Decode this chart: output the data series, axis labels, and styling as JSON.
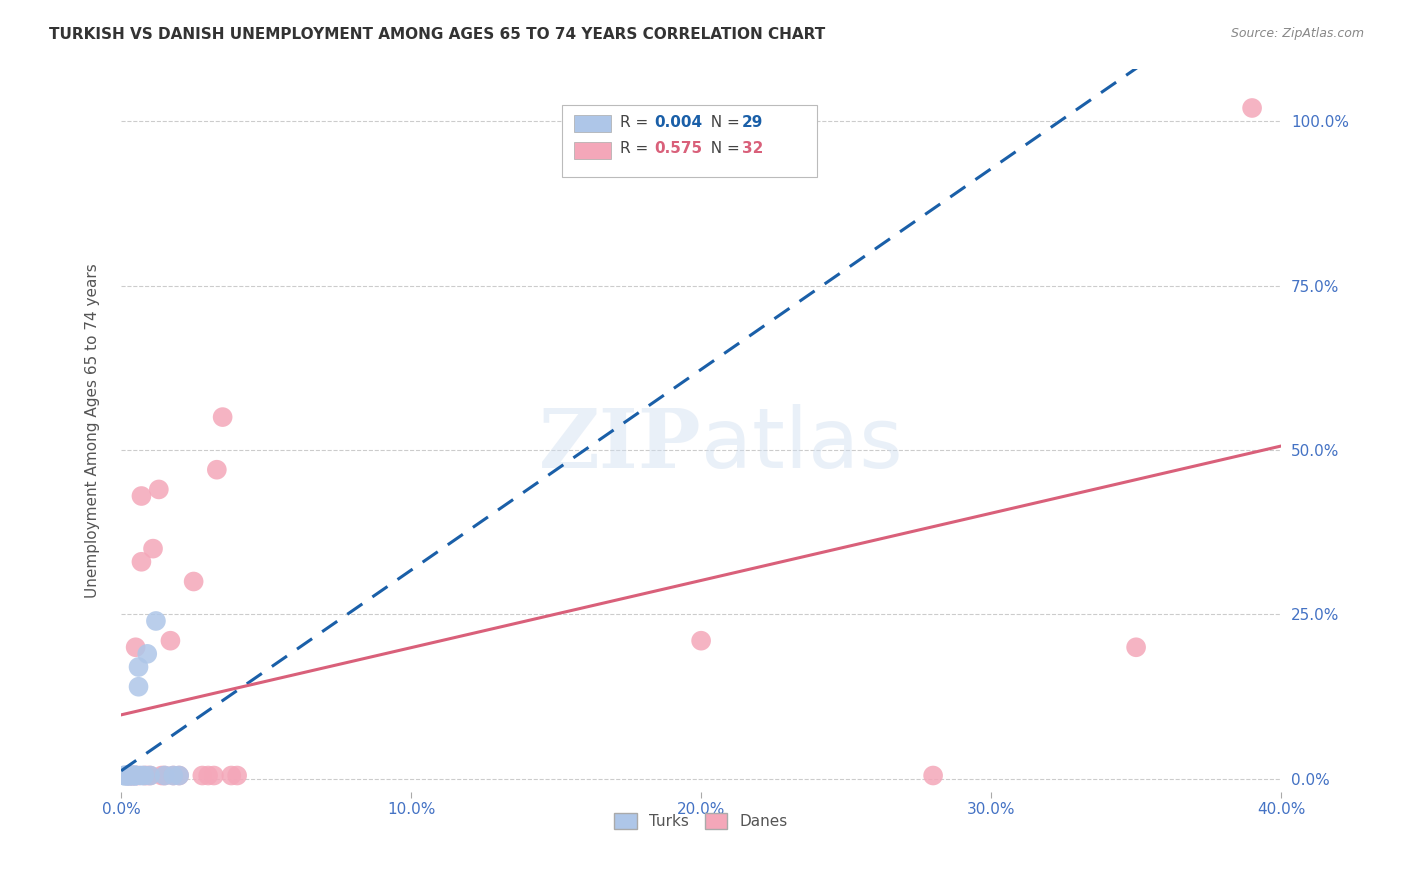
{
  "title": "TURKISH VS DANISH UNEMPLOYMENT AMONG AGES 65 TO 74 YEARS CORRELATION CHART",
  "source": "Source: ZipAtlas.com",
  "ylabel": "Unemployment Among Ages 65 to 74 years",
  "xlim": [
    0.0,
    0.4
  ],
  "ylim": [
    -0.02,
    1.08
  ],
  "x_ticks": [
    0.0,
    0.1,
    0.2,
    0.3,
    0.4
  ],
  "x_tick_labels": [
    "0.0%",
    "10.0%",
    "20.0%",
    "30.0%",
    "40.0%"
  ],
  "y_ticks": [
    0.0,
    0.25,
    0.5,
    0.75,
    1.0
  ],
  "y_tick_labels_right": [
    "0.0%",
    "25.0%",
    "50.0%",
    "75.0%",
    "100.0%"
  ],
  "turks_x": [
    0.001,
    0.001,
    0.001,
    0.002,
    0.002,
    0.002,
    0.002,
    0.002,
    0.003,
    0.003,
    0.003,
    0.003,
    0.004,
    0.004,
    0.004,
    0.005,
    0.005,
    0.005,
    0.005,
    0.006,
    0.006,
    0.007,
    0.008,
    0.009,
    0.01,
    0.012,
    0.015,
    0.018,
    0.02
  ],
  "turks_y": [
    0.005,
    0.005,
    0.005,
    0.005,
    0.005,
    0.005,
    0.005,
    0.005,
    0.005,
    0.005,
    0.005,
    0.005,
    0.005,
    0.005,
    0.005,
    0.005,
    0.005,
    0.005,
    0.005,
    0.14,
    0.17,
    0.005,
    0.005,
    0.19,
    0.005,
    0.24,
    0.005,
    0.005,
    0.005
  ],
  "danes_x": [
    0.002,
    0.003,
    0.003,
    0.004,
    0.004,
    0.005,
    0.005,
    0.006,
    0.007,
    0.007,
    0.008,
    0.009,
    0.01,
    0.011,
    0.013,
    0.014,
    0.015,
    0.017,
    0.018,
    0.02,
    0.025,
    0.028,
    0.03,
    0.032,
    0.033,
    0.035,
    0.038,
    0.04,
    0.2,
    0.28,
    0.35,
    0.39
  ],
  "danes_y": [
    0.005,
    0.005,
    0.005,
    0.005,
    0.005,
    0.2,
    0.005,
    0.005,
    0.33,
    0.43,
    0.005,
    0.005,
    0.005,
    0.35,
    0.44,
    0.005,
    0.005,
    0.21,
    0.005,
    0.005,
    0.3,
    0.005,
    0.005,
    0.005,
    0.47,
    0.55,
    0.005,
    0.005,
    0.21,
    0.005,
    0.2,
    1.02
  ],
  "turks_color": "#aec6e8",
  "danes_color": "#f4a7b9",
  "turks_line_color": "#1a5fa8",
  "danes_line_color": "#d9607a",
  "turks_line_style": "solid",
  "danes_line_style": "solid",
  "turks_R": 0.004,
  "turks_N": 29,
  "danes_R": 0.575,
  "danes_N": 32,
  "background_color": "#ffffff",
  "grid_color": "#cccccc",
  "title_color": "#333333",
  "axis_tick_color": "#4472c4",
  "right_axis_color": "#4472c4"
}
